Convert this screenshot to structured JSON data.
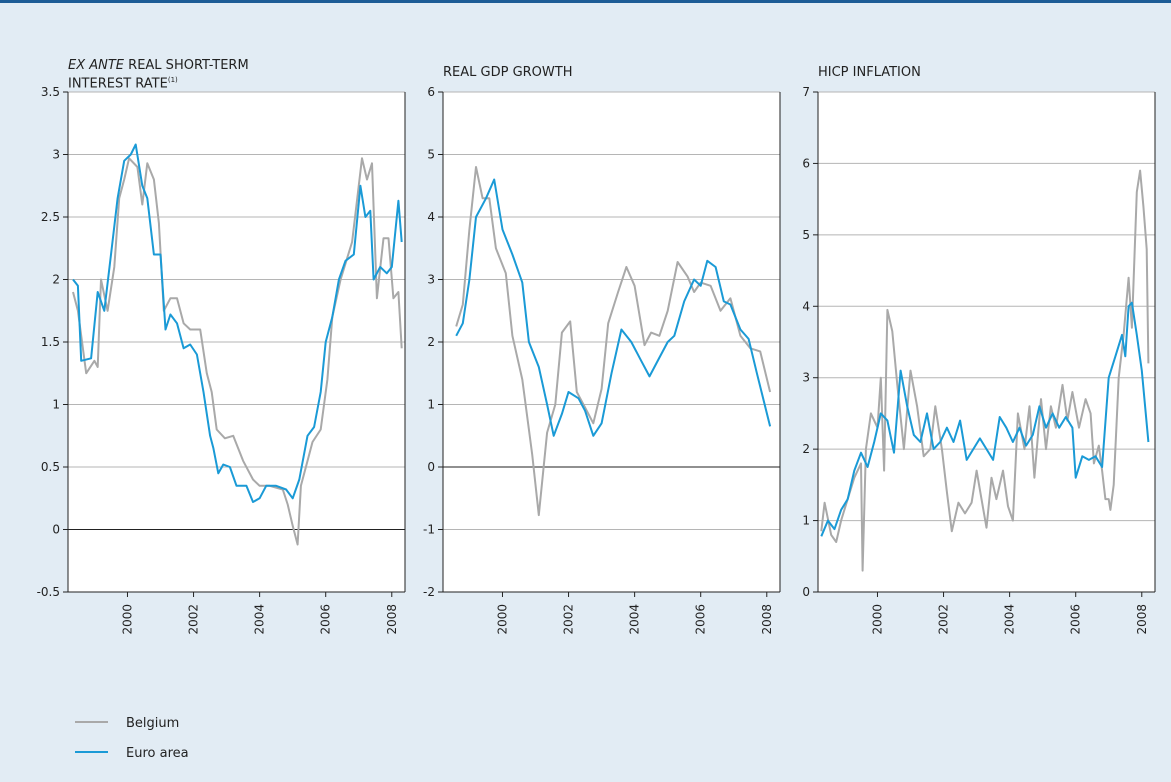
{
  "chart_data": [
    {
      "type": "line",
      "title_prefix": "EX ANTE",
      "title": "REAL SHORT-TERM INTEREST RATE",
      "title_note": "(1)",
      "xlim": [
        1998.2,
        2008.4
      ],
      "xticks": [
        2000,
        2002,
        2004,
        2006,
        2008
      ],
      "ylim": [
        -0.5,
        3.5
      ],
      "yticks": [
        -0.5,
        0.0,
        0.5,
        1.0,
        1.5,
        2.0,
        2.5,
        3.0,
        3.5
      ],
      "grid": true,
      "series": [
        {
          "name": "Belgium",
          "color": "#a9a9a9",
          "x": [
            1998.35,
            1998.5,
            1998.75,
            1999.0,
            1999.1,
            1999.2,
            1999.4,
            1999.6,
            1999.75,
            1999.9,
            2000.05,
            2000.3,
            2000.45,
            2000.6,
            2000.8,
            2000.95,
            2001.1,
            2001.3,
            2001.5,
            2001.7,
            2001.9,
            2002.2,
            2002.4,
            2002.55,
            2002.7,
            2002.95,
            2003.2,
            2003.5,
            2003.8,
            2004.0,
            2004.3,
            2004.7,
            2004.85,
            2005.0,
            2005.15,
            2005.25,
            2005.4,
            2005.6,
            2005.85,
            2006.05,
            2006.2,
            2006.45,
            2006.8,
            2007.1,
            2007.25,
            2007.4,
            2007.55,
            2007.75,
            2007.9,
            2008.05,
            2008.2,
            2008.3
          ],
          "values": [
            1.9,
            1.75,
            1.25,
            1.35,
            1.3,
            2.0,
            1.75,
            2.1,
            2.65,
            2.8,
            2.97,
            2.9,
            2.6,
            2.93,
            2.8,
            2.45,
            1.75,
            1.85,
            1.85,
            1.65,
            1.6,
            1.6,
            1.25,
            1.1,
            0.8,
            0.73,
            0.75,
            0.55,
            0.4,
            0.35,
            0.35,
            0.32,
            0.2,
            0.03,
            -0.12,
            0.35,
            0.5,
            0.7,
            0.8,
            1.2,
            1.7,
            2.0,
            2.3,
            2.97,
            2.8,
            2.93,
            1.85,
            2.33,
            2.33,
            1.85,
            1.9,
            1.45
          ]
        },
        {
          "name": "Euro area",
          "color": "#1a9ad6",
          "x": [
            1998.35,
            1998.5,
            1998.6,
            1998.9,
            1999.1,
            1999.3,
            1999.5,
            1999.7,
            1999.9,
            2000.1,
            2000.25,
            2000.45,
            2000.6,
            2000.8,
            2001.0,
            2001.15,
            2001.3,
            2001.5,
            2001.7,
            2001.9,
            2002.1,
            2002.3,
            2002.5,
            2002.6,
            2002.75,
            2002.9,
            2003.1,
            2003.3,
            2003.6,
            2003.8,
            2004.0,
            2004.2,
            2004.5,
            2004.8,
            2005.0,
            2005.2,
            2005.45,
            2005.65,
            2005.85,
            2006.0,
            2006.2,
            2006.4,
            2006.6,
            2006.85,
            2007.05,
            2007.2,
            2007.35,
            2007.45,
            2007.65,
            2007.85,
            2008.0,
            2008.2,
            2008.3
          ],
          "values": [
            2.0,
            1.95,
            1.35,
            1.37,
            1.9,
            1.75,
            2.2,
            2.65,
            2.95,
            3.0,
            3.08,
            2.75,
            2.65,
            2.2,
            2.2,
            1.6,
            1.72,
            1.65,
            1.45,
            1.48,
            1.4,
            1.1,
            0.75,
            0.65,
            0.45,
            0.52,
            0.5,
            0.35,
            0.35,
            0.22,
            0.25,
            0.35,
            0.35,
            0.32,
            0.25,
            0.4,
            0.75,
            0.82,
            1.1,
            1.5,
            1.7,
            2.0,
            2.15,
            2.2,
            2.75,
            2.5,
            2.55,
            2.0,
            2.1,
            2.05,
            2.1,
            2.63,
            2.3
          ]
        }
      ]
    },
    {
      "type": "line",
      "title": "REAL GDP GROWTH",
      "xlim": [
        1998.2,
        2008.4
      ],
      "xticks": [
        2000,
        2002,
        2004,
        2006,
        2008
      ],
      "ylim": [
        -2,
        6
      ],
      "yticks": [
        -2,
        -1,
        0,
        1,
        2,
        3,
        4,
        5,
        6
      ],
      "grid": true,
      "series": [
        {
          "color": "#a9a9a9",
          "x": [
            1998.6,
            1998.8,
            1999.0,
            1999.2,
            1999.4,
            1999.6,
            1999.8,
            2000.1,
            2000.3,
            2000.6,
            2000.9,
            2001.1,
            2001.35,
            2001.6,
            2001.8,
            2002.05,
            2002.25,
            2002.5,
            2002.75,
            2003.0,
            2003.2,
            2003.5,
            2003.75,
            2004.0,
            2004.3,
            2004.5,
            2004.75,
            2005.0,
            2005.3,
            2005.6,
            2005.8,
            2006.0,
            2006.3,
            2006.6,
            2006.9,
            2007.2,
            2007.5,
            2007.8,
            2008.1
          ],
          "values": [
            2.25,
            2.6,
            3.8,
            4.8,
            4.3,
            4.3,
            3.5,
            3.1,
            2.1,
            1.4,
            0.2,
            -0.77,
            0.55,
            1.0,
            2.15,
            2.33,
            1.2,
            0.95,
            0.7,
            1.25,
            2.3,
            2.8,
            3.2,
            2.9,
            1.95,
            2.15,
            2.1,
            2.5,
            3.28,
            3.05,
            2.8,
            2.95,
            2.9,
            2.5,
            2.7,
            2.1,
            1.9,
            1.85,
            1.2
          ]
        },
        {
          "color": "#1a9ad6",
          "x": [
            1998.6,
            1998.8,
            1999.0,
            1999.2,
            1999.5,
            1999.75,
            2000.0,
            2000.3,
            2000.6,
            2000.8,
            2001.1,
            2001.35,
            2001.55,
            2001.8,
            2002.0,
            2002.3,
            2002.5,
            2002.75,
            2003.0,
            2003.3,
            2003.6,
            2003.9,
            2004.2,
            2004.45,
            2004.75,
            2005.0,
            2005.2,
            2005.5,
            2005.8,
            2006.0,
            2006.2,
            2006.45,
            2006.7,
            2006.9,
            2007.2,
            2007.45,
            2007.7,
            2008.1
          ],
          "values": [
            2.1,
            2.3,
            3.0,
            4.0,
            4.3,
            4.6,
            3.8,
            3.4,
            2.95,
            2.0,
            1.6,
            1.0,
            0.5,
            0.85,
            1.2,
            1.1,
            0.9,
            0.5,
            0.7,
            1.5,
            2.2,
            2.0,
            1.7,
            1.45,
            1.75,
            2.0,
            2.1,
            2.65,
            3.0,
            2.9,
            3.3,
            3.2,
            2.65,
            2.6,
            2.2,
            2.05,
            1.5,
            0.65
          ]
        }
      ]
    },
    {
      "type": "line",
      "title": "HICP INFLATION",
      "xlim": [
        1998.2,
        2008.4
      ],
      "xticks": [
        2000,
        2002,
        2004,
        2006,
        2008
      ],
      "ylim": [
        0,
        7
      ],
      "yticks": [
        0,
        1,
        2,
        3,
        4,
        5,
        6,
        7
      ],
      "grid": true,
      "series": [
        {
          "color": "#a9a9a9",
          "x": [
            1998.3,
            1998.4,
            1998.6,
            1998.75,
            1998.9,
            1999.1,
            1999.3,
            1999.5,
            1999.55,
            1999.65,
            1999.8,
            2000.0,
            2000.1,
            2000.2,
            2000.3,
            2000.45,
            2000.6,
            2000.8,
            2001.0,
            2001.2,
            2001.4,
            2001.6,
            2001.75,
            2001.95,
            2002.1,
            2002.25,
            2002.45,
            2002.65,
            2002.85,
            2003.0,
            2003.15,
            2003.3,
            2003.45,
            2003.6,
            2003.8,
            2003.95,
            2004.1,
            2004.25,
            2004.45,
            2004.6,
            2004.75,
            2004.95,
            2005.1,
            2005.25,
            2005.4,
            2005.6,
            2005.75,
            2005.9,
            2006.1,
            2006.3,
            2006.45,
            2006.55,
            2006.7,
            2006.8,
            2006.9,
            2007.0,
            2007.05,
            2007.15,
            2007.3,
            2007.45,
            2007.6,
            2007.7,
            2007.85,
            2007.95,
            2008.05,
            2008.15,
            2008.2
          ],
          "values": [
            0.85,
            1.25,
            0.8,
            0.7,
            1.0,
            1.3,
            1.6,
            1.8,
            0.3,
            2.0,
            2.5,
            2.3,
            3.0,
            1.7,
            3.95,
            3.65,
            2.9,
            2.0,
            3.1,
            2.6,
            1.9,
            2.0,
            2.6,
            2.0,
            1.4,
            0.85,
            1.25,
            1.1,
            1.25,
            1.7,
            1.3,
            0.9,
            1.6,
            1.3,
            1.7,
            1.2,
            1.0,
            2.5,
            2.0,
            2.6,
            1.6,
            2.7,
            2.0,
            2.6,
            2.3,
            2.9,
            2.4,
            2.8,
            2.3,
            2.7,
            2.5,
            1.8,
            2.05,
            1.7,
            1.3,
            1.3,
            1.15,
            1.5,
            3.0,
            3.6,
            4.4,
            3.7,
            5.6,
            5.9,
            5.4,
            4.8,
            3.2
          ]
        },
        {
          "color": "#1a9ad6",
          "x": [
            1998.3,
            1998.5,
            1998.7,
            1998.9,
            1999.1,
            1999.3,
            1999.5,
            1999.7,
            1999.9,
            2000.1,
            2000.3,
            2000.5,
            2000.7,
            2000.9,
            2001.1,
            2001.3,
            2001.5,
            2001.7,
            2001.9,
            2002.1,
            2002.3,
            2002.5,
            2002.7,
            2002.9,
            2003.1,
            2003.3,
            2003.5,
            2003.7,
            2003.9,
            2004.1,
            2004.3,
            2004.5,
            2004.7,
            2004.9,
            2005.1,
            2005.3,
            2005.5,
            2005.7,
            2005.9,
            2006.0,
            2006.2,
            2006.4,
            2006.6,
            2006.8,
            2007.0,
            2007.2,
            2007.4,
            2007.5,
            2007.6,
            2007.7,
            2007.85,
            2008.0,
            2008.2
          ],
          "values": [
            0.78,
            1.0,
            0.88,
            1.15,
            1.3,
            1.7,
            1.95,
            1.75,
            2.1,
            2.5,
            2.4,
            1.95,
            3.1,
            2.6,
            2.2,
            2.1,
            2.5,
            2.0,
            2.1,
            2.3,
            2.1,
            2.4,
            1.85,
            2.0,
            2.15,
            2.0,
            1.85,
            2.45,
            2.3,
            2.1,
            2.3,
            2.05,
            2.2,
            2.6,
            2.3,
            2.5,
            2.3,
            2.45,
            2.3,
            1.6,
            1.9,
            1.85,
            1.9,
            1.75,
            3.0,
            3.3,
            3.6,
            3.3,
            4.0,
            4.05,
            3.6,
            3.1,
            2.1
          ]
        }
      ]
    }
  ]
}
